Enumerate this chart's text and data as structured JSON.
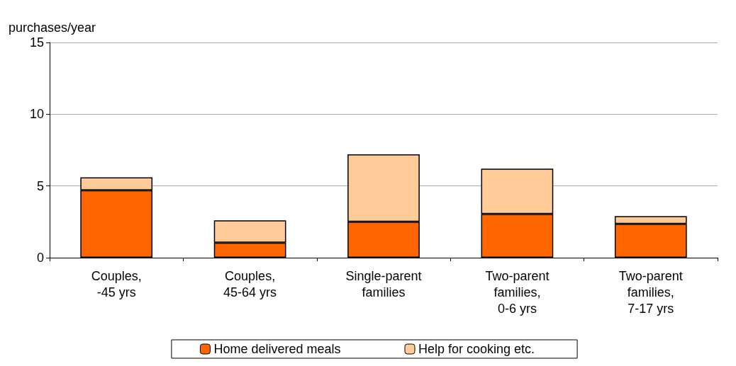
{
  "chart_data": {
    "type": "bar",
    "stacked": true,
    "ylabel": "purchases/year",
    "categories": [
      "Couples,\n-45 yrs",
      "Couples,\n45-64 yrs",
      "Single-parent\nfamilies",
      "Two-parent\nfamilies,\n0-6 yrs",
      "Two-parent\nfamilies,\n7-17 yrs"
    ],
    "series": [
      {
        "name": "Home delivered meals",
        "color": "#ff6600",
        "values": [
          4.7,
          1.05,
          2.5,
          3.05,
          2.35
        ]
      },
      {
        "name": "Help for cooking etc.",
        "color": "#ffcc99",
        "values": [
          0.9,
          1.55,
          4.7,
          3.15,
          0.55
        ]
      }
    ],
    "ylim": [
      0,
      15
    ],
    "yticks": [
      0,
      5,
      10,
      15
    ],
    "grid": "y",
    "legend": "bottom"
  }
}
